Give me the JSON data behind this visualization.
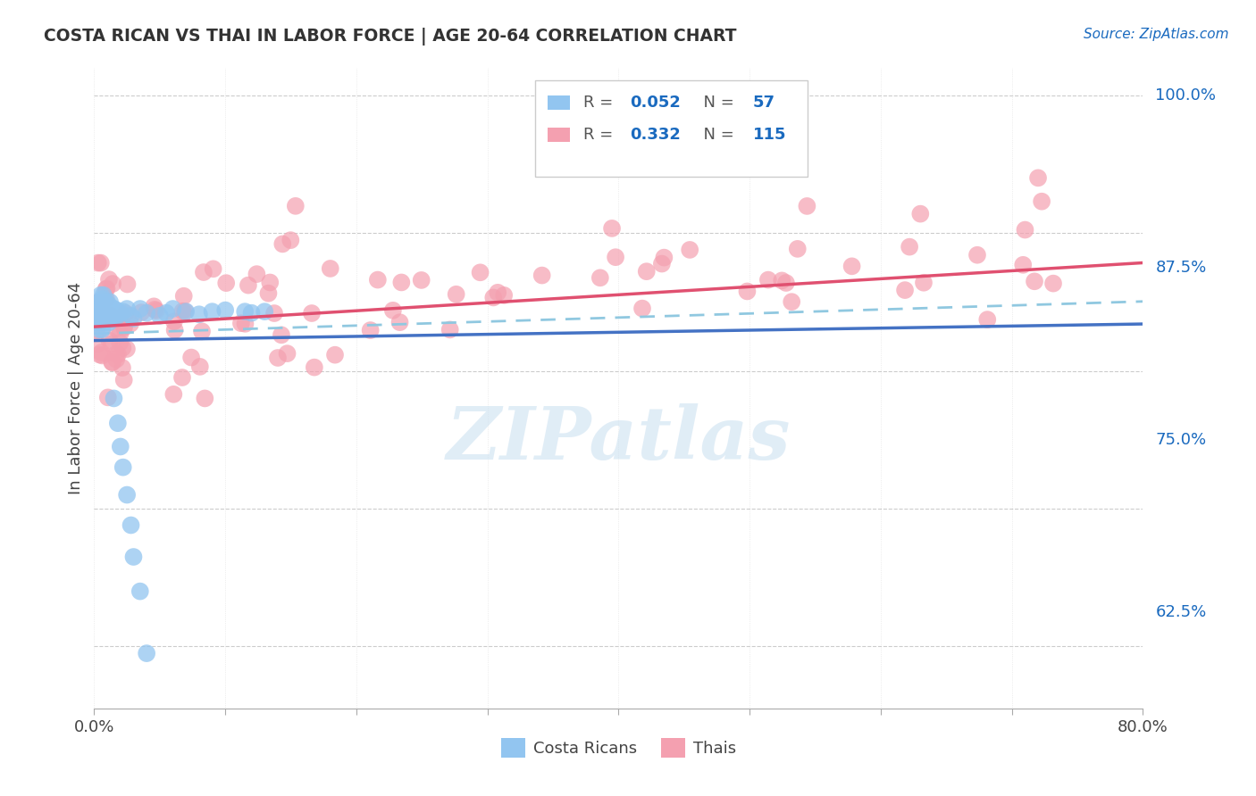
{
  "title": "COSTA RICAN VS THAI IN LABOR FORCE | AGE 20-64 CORRELATION CHART",
  "source": "Source: ZipAtlas.com",
  "ylabel": "In Labor Force | Age 20-64",
  "ytick_labels": [
    "62.5%",
    "75.0%",
    "87.5%",
    "100.0%"
  ],
  "ytick_values": [
    0.625,
    0.75,
    0.875,
    1.0
  ],
  "blue_color": "#92C5F0",
  "pink_color": "#F4A0B0",
  "blue_line_color": "#4472C4",
  "pink_line_color": "#E05070",
  "dashed_line_color": "#90C8E0",
  "watermark_color": "#C8DFF0",
  "xlim": [
    0.0,
    0.8
  ],
  "ylim": [
    0.555,
    1.02
  ],
  "blue_R": 0.052,
  "pink_R": 0.332,
  "blue_N": 57,
  "pink_N": 115
}
